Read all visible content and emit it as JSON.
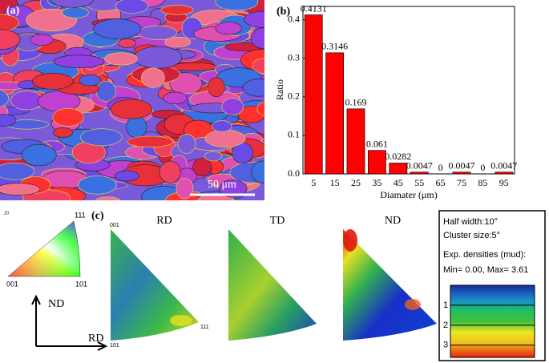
{
  "chart_data": {
    "type": "bar",
    "panel_label": "(b)",
    "x_label": "Diamater (μm)",
    "y_label": "Ratio",
    "categories": [
      "5",
      "15",
      "25",
      "35",
      "45",
      "55",
      "65",
      "75",
      "85",
      "95"
    ],
    "values": [
      0.4131,
      0.3146,
      0.169,
      0.061,
      0.0282,
      0.0047,
      0,
      0.0047,
      0,
      0.0047
    ],
    "color": "#ff0000",
    "ylim": [
      0,
      0.435
    ],
    "yticks": [
      {
        "value": 0,
        "label": "0.0"
      },
      0.1,
      0.2,
      0.3,
      0.4
    ]
  },
  "panel_a": {
    "label": "(a)",
    "scale_bar": "50 μm"
  },
  "ipf_key": {
    "step": "20",
    "corner_top": "111",
    "corner_left": "001",
    "corner_right": "101",
    "axis_up": "ND",
    "axis_right": "RD"
  },
  "panel_c": {
    "label": "(c)",
    "titles": [
      "RD",
      "TD",
      "ND"
    ],
    "corner_top": "001",
    "corner_right": "111",
    "corner_bottom": "101"
  },
  "info_box": {
    "half_width": "Half width:10°",
    "cluster_size": "Cluster size:5°",
    "densities": "Exp. densities (mud):",
    "range": "Min= 0.00, Max= 3.61",
    "colorbar_lim": [
      0,
      3.61
    ],
    "colorbar_ticks": [
      1,
      2,
      3
    ]
  }
}
